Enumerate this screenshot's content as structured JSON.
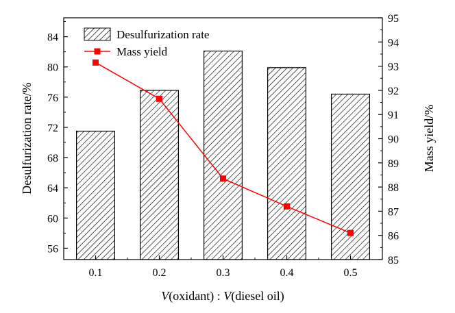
{
  "chart_data": {
    "type": "bar+line",
    "categories": [
      "0.1",
      "0.2",
      "0.3",
      "0.4",
      "0.5"
    ],
    "series": [
      {
        "name": "Desulfurization rate",
        "type": "bar",
        "axis": "left",
        "values": [
          71.5,
          76.9,
          82.1,
          79.9,
          76.4
        ],
        "fill": "hatched",
        "color": "#000000"
      },
      {
        "name": "Mass yield",
        "type": "line",
        "axis": "right",
        "values": [
          93.15,
          91.65,
          88.35,
          87.2,
          86.1
        ],
        "color": "#ff0000"
      }
    ],
    "xlabel_prefix_italic": "V",
    "xlabel_part1": "(oxidant)",
    "xlabel_separator": " : ",
    "xlabel_part2": "(diesel oil)",
    "ylabel_left": "Desulfurization rate/%",
    "ylabel_right": "Mass yield/%",
    "ylim_left": [
      54.5,
      86.5
    ],
    "ylim_right": [
      85,
      95
    ],
    "yticks_left": [
      "56",
      "60",
      "64",
      "68",
      "72",
      "76",
      "80",
      "84"
    ],
    "yticks_right": [
      "85",
      "86",
      "87",
      "88",
      "89",
      "90",
      "91",
      "92",
      "93",
      "94",
      "95"
    ],
    "legend_position": "top-left",
    "grid": false
  }
}
